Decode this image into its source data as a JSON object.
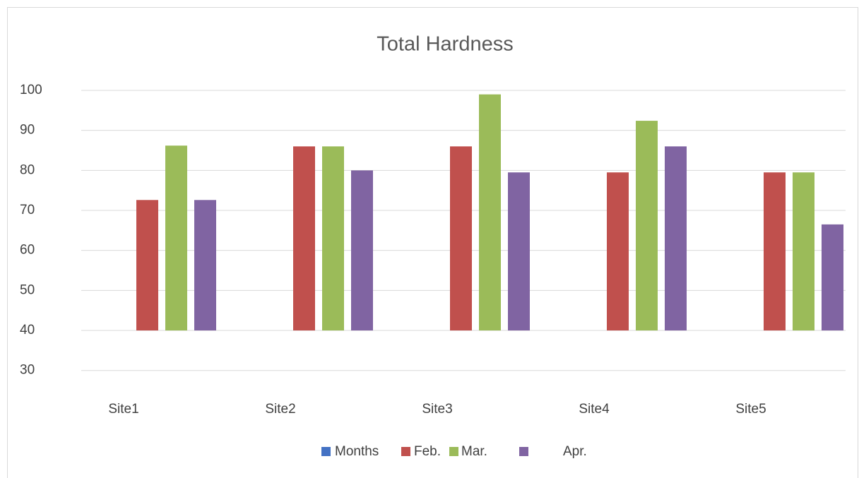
{
  "chart_data": {
    "type": "bar",
    "title": "Total Hardness",
    "categories": [
      "Site1",
      "Site2",
      "Site3",
      "Site4",
      "Site5"
    ],
    "series": [
      {
        "name": "Months",
        "color": "#4472c4",
        "values": [
          null,
          null,
          null,
          null,
          null
        ]
      },
      {
        "name": "Feb.",
        "color": "#c0504d",
        "values": [
          72.6,
          86,
          86,
          79.5,
          79.5
        ]
      },
      {
        "name": "Mar.",
        "color": "#9bbb59",
        "values": [
          86.2,
          86,
          99,
          92.4,
          79.5
        ]
      },
      {
        "name": "Apr.",
        "color": "#8064a2",
        "values": [
          72.6,
          80,
          79.5,
          86,
          66.5
        ]
      }
    ],
    "ylim": [
      27,
      100
    ],
    "yticks": [
      30,
      40,
      50,
      60,
      70,
      80,
      90,
      100
    ],
    "grid": true,
    "legend": "bottom"
  }
}
